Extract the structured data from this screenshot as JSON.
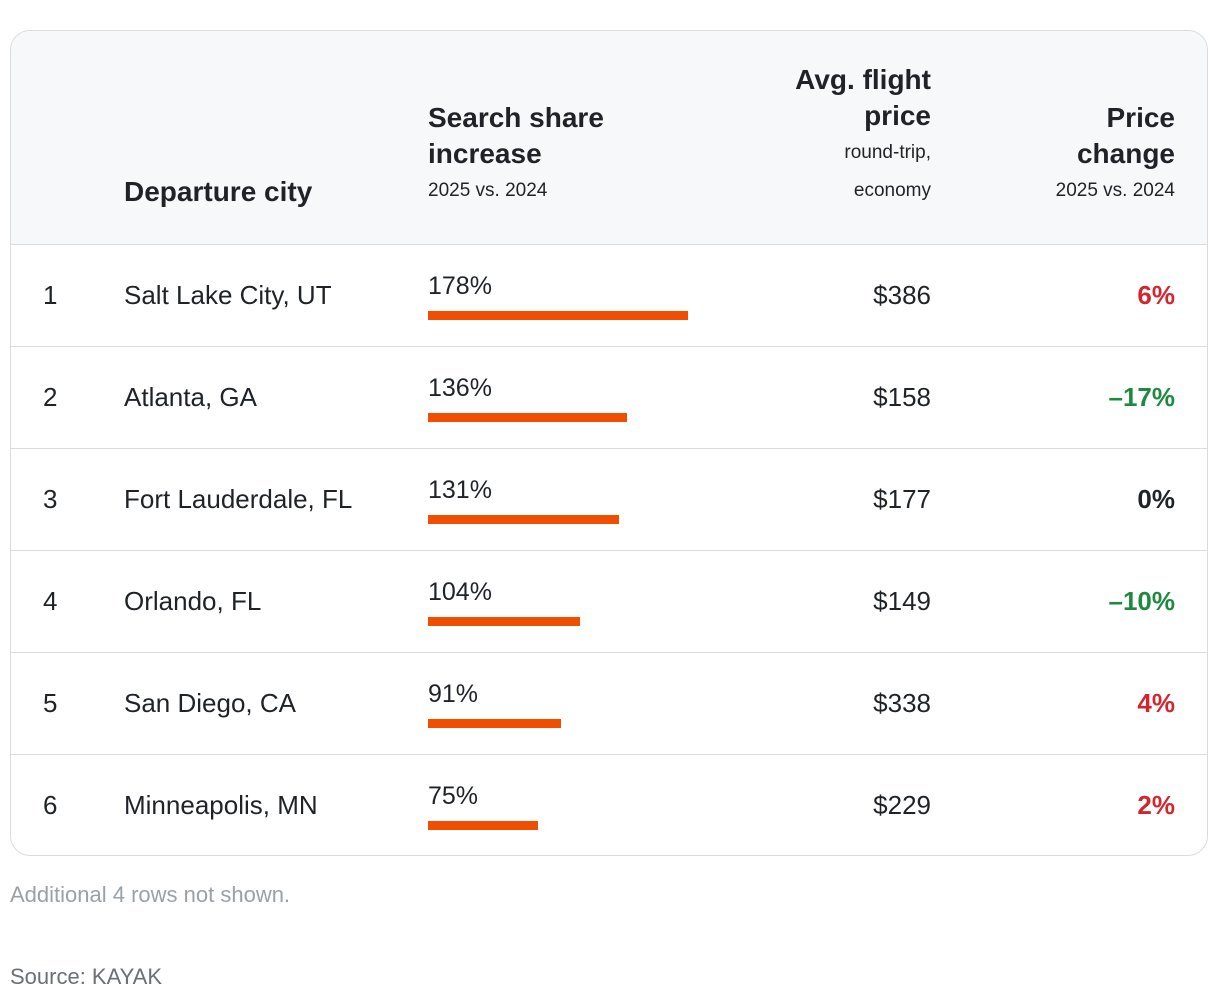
{
  "chart_data": {
    "type": "table",
    "columns": {
      "rank": "",
      "city": {
        "title": "Departure city"
      },
      "share": {
        "title": "Search share increase",
        "subtitle": "2025 vs. 2024"
      },
      "price": {
        "title_line1": "Avg. flight",
        "title_line2": "price",
        "subtitle_line1": "round-trip,",
        "subtitle_line2": "economy"
      },
      "change": {
        "title_line1": "Price",
        "title_line2": "change",
        "subtitle": "2025 vs. 2024"
      }
    },
    "share_max": 178,
    "rows": [
      {
        "rank": "1",
        "city": "Salt Lake City, UT",
        "share": 178,
        "share_label": "178%",
        "price": "$386",
        "change": 6,
        "change_label": "6%"
      },
      {
        "rank": "2",
        "city": "Atlanta, GA",
        "share": 136,
        "share_label": "136%",
        "price": "$158",
        "change": -17,
        "change_label": "–17%"
      },
      {
        "rank": "3",
        "city": "Fort Lauderdale, FL",
        "share": 131,
        "share_label": "131%",
        "price": "$177",
        "change": 0,
        "change_label": "0%"
      },
      {
        "rank": "4",
        "city": "Orlando, FL",
        "share": 104,
        "share_label": "104%",
        "price": "$149",
        "change": -10,
        "change_label": "–10%"
      },
      {
        "rank": "5",
        "city": "San Diego, CA",
        "share": 91,
        "share_label": "91%",
        "price": "$338",
        "change": 4,
        "change_label": "4%"
      },
      {
        "rank": "6",
        "city": "Minneapolis, MN",
        "share": 75,
        "share_label": "75%",
        "price": "$229",
        "change": 2,
        "change_label": "2%"
      }
    ],
    "colors": {
      "bar": "#f04e00",
      "increase": "#d4252f",
      "decrease": "#1d8a3f",
      "neutral": "#1f2328"
    }
  },
  "footnote": "Additional 4 rows not shown.",
  "source": "Source: KAYAK"
}
